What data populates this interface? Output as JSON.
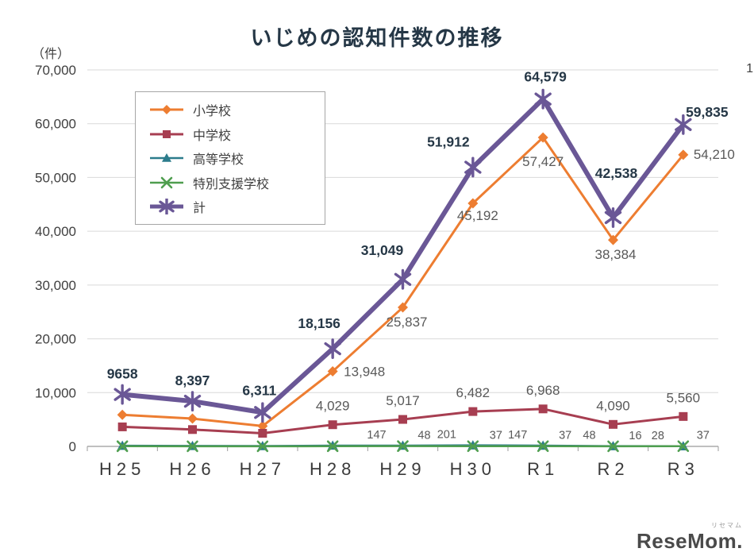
{
  "title": "いじめの認知件数の推移",
  "y_unit_label": "（件）",
  "right_edge_text": "1",
  "logo": {
    "small": "リセマム",
    "main": "ReseMom."
  },
  "colors": {
    "label_gray": "#595959",
    "label_navy": "#253746",
    "grid": "#d9d9d9",
    "axis": "#9b9b9b",
    "tick_text": "#3f3f3f"
  },
  "chart_data": {
    "type": "line",
    "title": "いじめの認知件数の推移",
    "xlabel": "",
    "ylabel": "（件）",
    "ylim": [
      0,
      70000
    ],
    "yticks": [
      0,
      10000,
      20000,
      30000,
      40000,
      50000,
      60000,
      70000
    ],
    "ytick_labels": [
      "0",
      "10,000",
      "20,000",
      "30,000",
      "40,000",
      "50,000",
      "60,000",
      "70,000"
    ],
    "grid": true,
    "legend_position": "upper-left-inside",
    "categories": [
      "H25",
      "H26",
      "H27",
      "H28",
      "H29",
      "H30",
      "R1",
      "R2",
      "R3"
    ],
    "series": [
      {
        "name": "小学校",
        "color": "#ED7D31",
        "marker": "diamond",
        "marker_size": 6.5,
        "line_width": 3,
        "label_class": "lbl-gray",
        "values": [
          5870,
          5160,
          3780,
          13948,
          25837,
          45192,
          57427,
          38384,
          54210
        ],
        "labels": [
          null,
          null,
          null,
          "13,948",
          "25,837",
          "45,192",
          "57,427",
          "38,384",
          "54,210"
        ],
        "label_offsets": [
          null,
          null,
          null,
          [
            14,
            6,
            "start"
          ],
          [
            5,
            24,
            "middle"
          ],
          [
            6,
            21,
            "middle"
          ],
          [
            0,
            36,
            "middle"
          ],
          [
            3,
            24,
            "middle"
          ],
          [
            13,
            5,
            "start"
          ]
        ]
      },
      {
        "name": "中学校",
        "color": "#A73E51",
        "marker": "square",
        "marker_size": 6.5,
        "line_width": 3,
        "label_class": "lbl-gray",
        "values": [
          3630,
          3130,
          2440,
          4029,
          5017,
          6482,
          6968,
          4090,
          5560
        ],
        "labels": [
          null,
          null,
          null,
          "4,029",
          "5,017",
          "6,482",
          "6,968",
          "4,090",
          "5,560"
        ],
        "label_offsets": [
          null,
          null,
          null,
          [
            0,
            -18,
            "middle"
          ],
          [
            0,
            -18,
            "middle"
          ],
          [
            0,
            -18,
            "middle"
          ],
          [
            0,
            -18,
            "middle"
          ],
          [
            0,
            -18,
            "middle"
          ],
          [
            0,
            -18,
            "middle"
          ]
        ]
      },
      {
        "name": "高等学校",
        "color": "#2C7C8C",
        "marker": "triangle",
        "marker_size": 6.5,
        "line_width": 2.5,
        "label_class": "lbl-gray-sm",
        "values": [
          130,
          90,
          70,
          150,
          147,
          201,
          147,
          48,
          28
        ],
        "labels": [
          null,
          null,
          null,
          null,
          "147",
          "201",
          "147",
          "48",
          "28"
        ],
        "label_offsets": [
          null,
          null,
          null,
          null,
          [
            -33,
            -9,
            "middle"
          ],
          [
            -33,
            -9,
            "middle"
          ],
          [
            -32,
            -9,
            "middle"
          ],
          [
            -30,
            -9,
            "middle"
          ],
          [
            -32,
            -9,
            "middle"
          ]
        ]
      },
      {
        "name": "特別支援学校",
        "color": "#4F9E4F",
        "marker": "x",
        "marker_size": 6,
        "line_width": 2.5,
        "label_class": "lbl-gray-sm",
        "values": [
          28,
          17,
          21,
          29,
          48,
          37,
          37,
          16,
          37
        ],
        "labels": [
          null,
          null,
          null,
          null,
          "48",
          "37",
          "37",
          "16",
          "37"
        ],
        "label_offsets": [
          null,
          null,
          null,
          null,
          [
            27,
            -9,
            "middle"
          ],
          [
            29,
            -9,
            "middle"
          ],
          [
            28,
            -9,
            "middle"
          ],
          [
            28,
            -9,
            "middle"
          ],
          [
            25,
            -9,
            "middle"
          ]
        ]
      },
      {
        "name": "計",
        "color": "#6A5796",
        "marker": "asterisk",
        "marker_size": 9,
        "line_width": 6,
        "label_class": "lbl-bold",
        "values": [
          9658,
          8397,
          6311,
          18156,
          31049,
          51912,
          64579,
          42538,
          59835
        ],
        "labels": [
          "9658",
          "8,397",
          "6,311",
          "18,156",
          "31,049",
          "51,912",
          "64,579",
          "42,538",
          "59,835"
        ],
        "label_offsets": [
          [
            0,
            -20,
            "middle"
          ],
          [
            0,
            -20,
            "middle"
          ],
          [
            -4,
            -22,
            "middle"
          ],
          [
            -17,
            -26,
            "middle"
          ],
          [
            -26,
            -31,
            "middle"
          ],
          [
            -31,
            -26,
            "middle"
          ],
          [
            3,
            -22,
            "middle"
          ],
          [
            4,
            -50,
            "middle"
          ],
          [
            30,
            -10,
            "middle"
          ]
        ]
      }
    ]
  }
}
